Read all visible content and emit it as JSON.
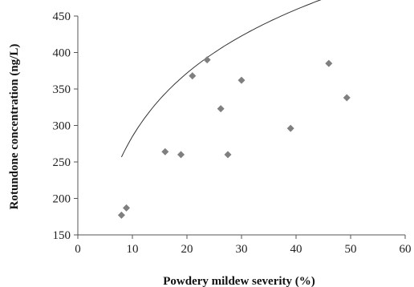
{
  "chart_data": {
    "type": "scatter",
    "title": "",
    "xlabel": "Powdery mildew severity (%)",
    "ylabel": "Rotundone concentration (ng/L)",
    "xlim": [
      0,
      60
    ],
    "ylim": [
      150,
      450
    ],
    "x_ticks": [
      "0",
      "10",
      "20",
      "30",
      "40",
      "50",
      "60"
    ],
    "y_ticks": [
      "150",
      "200",
      "250",
      "300",
      "350",
      "400",
      "450"
    ],
    "grid": false,
    "legend": "none",
    "marker": "diamond",
    "marker_color": "#7f7f7f",
    "trendline_color": "#333333",
    "points": [
      {
        "x": 8.0,
        "y": 177
      },
      {
        "x": 8.9,
        "y": 187
      },
      {
        "x": 16.0,
        "y": 264
      },
      {
        "x": 18.9,
        "y": 260
      },
      {
        "x": 21.0,
        "y": 368
      },
      {
        "x": 23.7,
        "y": 390
      },
      {
        "x": 26.2,
        "y": 323
      },
      {
        "x": 27.5,
        "y": 260
      },
      {
        "x": 30.0,
        "y": 362
      },
      {
        "x": 39.0,
        "y": 296
      },
      {
        "x": 46.0,
        "y": 385
      },
      {
        "x": 49.3,
        "y": 338
      }
    ],
    "trendline": {
      "type": "logarithmic",
      "a": 125.6,
      "b": 4.49,
      "x_range": [
        8,
        49
      ]
    }
  }
}
